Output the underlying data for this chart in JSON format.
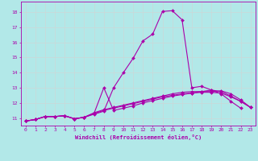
{
  "xlabel": "Windchill (Refroidissement éolien,°C)",
  "background_color": "#b2e8e8",
  "grid_color": "#c8dada",
  "line_color": "#aa00aa",
  "xlim": [
    -0.5,
    23.5
  ],
  "ylim": [
    10.5,
    18.7
  ],
  "yticks": [
    11,
    12,
    13,
    14,
    15,
    16,
    17,
    18
  ],
  "xticks": [
    0,
    1,
    2,
    3,
    4,
    5,
    6,
    7,
    8,
    9,
    10,
    11,
    12,
    13,
    14,
    15,
    16,
    17,
    18,
    19,
    20,
    21,
    22,
    23
  ],
  "series": [
    {
      "x": [
        0,
        1,
        2,
        3,
        4,
        5,
        6,
        7,
        8,
        9,
        10,
        11,
        12,
        13,
        14,
        15,
        16,
        17,
        18,
        19,
        20,
        21,
        22,
        23
      ],
      "y": [
        10.8,
        10.9,
        11.1,
        11.1,
        11.15,
        10.95,
        11.05,
        11.25,
        11.45,
        13.0,
        14.0,
        14.95,
        16.1,
        16.55,
        18.05,
        18.1,
        17.5,
        13.0,
        13.1,
        12.85,
        12.6,
        12.1,
        11.65,
        null
      ]
    },
    {
      "x": [
        0,
        1,
        2,
        3,
        4,
        5,
        6,
        7,
        8,
        9,
        10,
        11,
        12,
        13,
        14,
        15,
        16,
        17,
        18,
        19,
        20,
        21,
        22,
        23
      ],
      "y": [
        10.8,
        10.9,
        11.1,
        11.1,
        11.15,
        10.95,
        11.05,
        11.3,
        13.0,
        11.5,
        11.65,
        11.8,
        12.0,
        12.15,
        12.3,
        12.45,
        12.55,
        12.65,
        12.75,
        12.85,
        12.75,
        12.45,
        12.1,
        11.7
      ]
    },
    {
      "x": [
        0,
        1,
        2,
        3,
        4,
        5,
        6,
        7,
        8,
        9,
        10,
        11,
        12,
        13,
        14,
        15,
        16,
        17,
        18,
        19,
        20,
        21,
        22,
        23
      ],
      "y": [
        10.8,
        10.9,
        11.1,
        11.1,
        11.15,
        10.95,
        11.05,
        11.3,
        11.5,
        11.65,
        11.8,
        11.95,
        12.1,
        12.25,
        12.4,
        12.5,
        12.6,
        12.65,
        12.7,
        12.7,
        12.65,
        12.4,
        12.1,
        11.7
      ]
    },
    {
      "x": [
        0,
        1,
        2,
        3,
        4,
        5,
        6,
        7,
        8,
        9,
        10,
        11,
        12,
        13,
        14,
        15,
        16,
        17,
        18,
        19,
        20,
        21,
        22,
        23
      ],
      "y": [
        10.8,
        10.9,
        11.1,
        11.1,
        11.15,
        10.95,
        11.05,
        11.35,
        11.55,
        11.7,
        11.85,
        12.0,
        12.15,
        12.3,
        12.45,
        12.6,
        12.7,
        12.75,
        12.75,
        12.75,
        12.8,
        12.6,
        12.2,
        11.7
      ]
    }
  ]
}
